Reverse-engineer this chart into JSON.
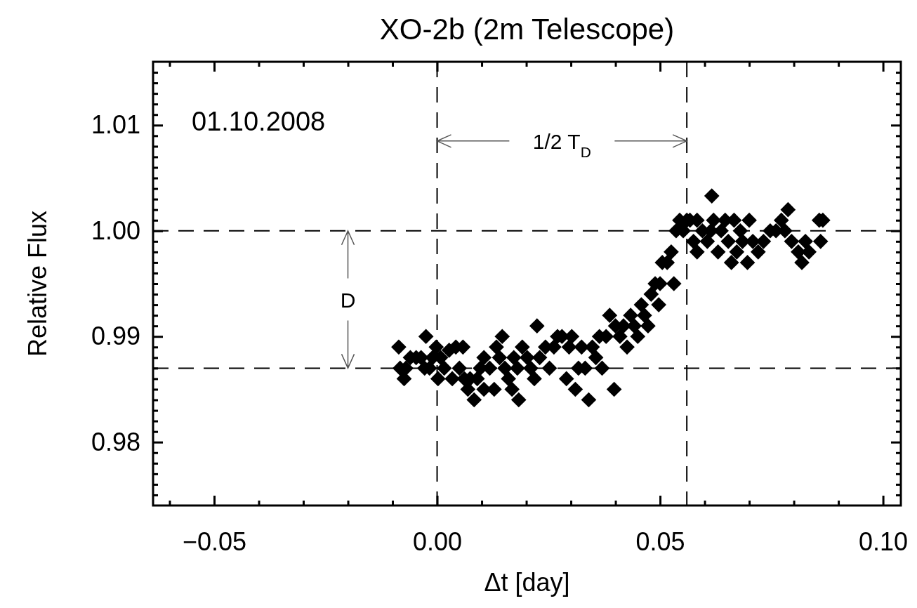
{
  "chart_data": {
    "type": "scatter",
    "title": "XO-2b (2m Telescope)",
    "xlabel": "Δt [day]",
    "ylabel": "Relative Flux",
    "xlim": [
      -0.0637,
      0.104
    ],
    "ylim": [
      0.974,
      1.016
    ],
    "xticks": [
      {
        "value": -0.06,
        "label": null
      },
      {
        "value": -0.05,
        "label": "−0.05"
      },
      {
        "value": -0.04,
        "label": null
      },
      {
        "value": -0.03,
        "label": null
      },
      {
        "value": -0.02,
        "label": null
      },
      {
        "value": -0.01,
        "label": null
      },
      {
        "value": 0,
        "label": "0.00"
      },
      {
        "value": 0.01,
        "label": null
      },
      {
        "value": 0.02,
        "label": null
      },
      {
        "value": 0.03,
        "label": null
      },
      {
        "value": 0.04,
        "label": null
      },
      {
        "value": 0.05,
        "label": "0.05"
      },
      {
        "value": 0.06,
        "label": null
      },
      {
        "value": 0.07,
        "label": null
      },
      {
        "value": 0.08,
        "label": null
      },
      {
        "value": 0.09,
        "label": null
      },
      {
        "value": 0.1,
        "label": "0.10"
      }
    ],
    "yticks": [
      {
        "value": 0.975,
        "label": null
      },
      {
        "value": 0.976,
        "label": null
      },
      {
        "value": 0.977,
        "label": null
      },
      {
        "value": 0.978,
        "label": null
      },
      {
        "value": 0.979,
        "label": null
      },
      {
        "value": 0.98,
        "label": "0.98"
      },
      {
        "value": 0.981,
        "label": null
      },
      {
        "value": 0.982,
        "label": null
      },
      {
        "value": 0.983,
        "label": null
      },
      {
        "value": 0.984,
        "label": null
      },
      {
        "value": 0.985,
        "label": null
      },
      {
        "value": 0.986,
        "label": null
      },
      {
        "value": 0.987,
        "label": null
      },
      {
        "value": 0.988,
        "label": null
      },
      {
        "value": 0.989,
        "label": null
      },
      {
        "value": 0.99,
        "label": "0.99"
      },
      {
        "value": 0.991,
        "label": null
      },
      {
        "value": 0.992,
        "label": null
      },
      {
        "value": 0.993,
        "label": null
      },
      {
        "value": 0.994,
        "label": null
      },
      {
        "value": 0.995,
        "label": null
      },
      {
        "value": 0.996,
        "label": null
      },
      {
        "value": 0.997,
        "label": null
      },
      {
        "value": 0.998,
        "label": null
      },
      {
        "value": 0.999,
        "label": null
      },
      {
        "value": 1.0,
        "label": "1.00"
      },
      {
        "value": 1.001,
        "label": null
      },
      {
        "value": 1.002,
        "label": null
      },
      {
        "value": 1.003,
        "label": null
      },
      {
        "value": 1.004,
        "label": null
      },
      {
        "value": 1.005,
        "label": null
      },
      {
        "value": 1.006,
        "label": null
      },
      {
        "value": 1.007,
        "label": null
      },
      {
        "value": 1.008,
        "label": null
      },
      {
        "value": 1.009,
        "label": null
      },
      {
        "value": 1.01,
        "label": "1.01"
      },
      {
        "value": 1.011,
        "label": null
      },
      {
        "value": 1.012,
        "label": null
      },
      {
        "value": 1.013,
        "label": null
      },
      {
        "value": 1.014,
        "label": null
      },
      {
        "value": 1.015,
        "label": null
      }
    ],
    "marker": "diamond",
    "ref_lines": [
      {
        "axis": "x",
        "value": 0,
        "line_style": "dashed"
      },
      {
        "axis": "x",
        "value": 0.056,
        "line_style": "dashed"
      },
      {
        "axis": "y",
        "value": 1.0,
        "line_style": "dashed"
      },
      {
        "axis": "y",
        "value": 0.987,
        "line_style": "dashed"
      }
    ],
    "annotations": [
      "01.10.2008",
      {
        "text": "1/2 T$_{D}$",
        "x": 0.056,
        "y": 1.0085
      },
      {
        "text": "D",
        "x": -0.02,
        "y": 1.0
      }
    ],
    "series": [
      {
        "color": "#000000",
        "x": [
          -0.0086,
          -0.0083,
          -0.0074,
          -0.007,
          -0.006,
          -0.0047,
          -0.0036,
          -0.0025,
          -0.0028,
          -0.0017,
          -0.001,
          -0.0002,
          0.0002,
          0.0008,
          0.0016,
          0.0027,
          0.0034,
          0.0042,
          0.005,
          0.0058,
          0.0061,
          0.0069,
          0.0074,
          0.0083,
          0.009,
          0.0097,
          0.0105,
          0.0105,
          0.0118,
          0.0128,
          0.0133,
          0.014,
          0.0146,
          0.0152,
          0.016,
          0.0168,
          0.0172,
          0.018,
          0.0183,
          0.0191,
          0.0202,
          0.021,
          0.0218,
          0.0224,
          0.023,
          0.0243,
          0.0252,
          0.0262,
          0.027,
          0.028,
          0.029,
          0.0296,
          0.0302,
          0.031,
          0.0317,
          0.0324,
          0.0332,
          0.034,
          0.0348,
          0.0356,
          0.0364,
          0.037,
          0.0379,
          0.0387,
          0.0397,
          0.04,
          0.041,
          0.0418,
          0.0426,
          0.0434,
          0.0442,
          0.045,
          0.0458,
          0.0465,
          0.0473,
          0.048,
          0.0489,
          0.0497,
          0.05,
          0.0505,
          0.0516,
          0.0525,
          0.0531,
          0.0536,
          0.0544,
          0.0552,
          0.056,
          0.0567,
          0.0575,
          0.0583,
          0.0583,
          0.0595,
          0.0606,
          0.0616,
          0.0614,
          0.062,
          0.063,
          0.0637,
          0.0646,
          0.0653,
          0.066,
          0.0666,
          0.0672,
          0.068,
          0.0685,
          0.0696,
          0.07,
          0.0708,
          0.072,
          0.0732,
          0.0747,
          0.076,
          0.0772,
          0.078,
          0.0787,
          0.0795,
          0.081,
          0.0818,
          0.0826,
          0.0834,
          0.0857,
          0.0865,
          0.086
        ],
        "values": [
          0.989,
          0.987,
          0.986,
          0.987,
          0.988,
          0.988,
          0.988,
          0.99,
          0.987,
          0.987,
          0.988,
          0.989,
          0.986,
          0.988,
          0.987,
          0.9887,
          0.986,
          0.989,
          0.987,
          0.989,
          0.986,
          0.985,
          0.986,
          0.984,
          0.986,
          0.987,
          0.988,
          0.985,
          0.987,
          0.985,
          0.989,
          0.988,
          0.99,
          0.987,
          0.986,
          0.985,
          0.988,
          0.987,
          0.984,
          0.989,
          0.988,
          0.987,
          0.986,
          0.991,
          0.988,
          0.989,
          0.987,
          0.989,
          0.99,
          0.99,
          0.986,
          0.989,
          0.99,
          0.985,
          0.987,
          0.989,
          0.987,
          0.984,
          0.989,
          0.988,
          0.99,
          0.987,
          0.99,
          0.992,
          0.985,
          0.991,
          0.99,
          0.991,
          0.989,
          0.992,
          0.991,
          0.99,
          0.993,
          0.992,
          0.991,
          0.994,
          0.995,
          0.993,
          0.995,
          0.997,
          0.997,
          0.998,
          0.995,
          1.0,
          1.001,
          1.0,
          1.001,
          1.001,
          0.999,
          1.001,
          0.998,
          1.0,
          0.999,
          1.0033,
          1.0,
          1.001,
          0.998,
          1.0,
          1.001,
          0.999,
          0.997,
          1.001,
          0.998,
          1.0,
          0.999,
          0.997,
          1.001,
          0.999,
          0.998,
          0.999,
          1.0,
          1.0,
          1.001,
          1.0,
          1.002,
          0.999,
          0.998,
          0.997,
          0.999,
          0.998,
          1.001,
          1.001,
          0.999
        ]
      }
    ]
  }
}
